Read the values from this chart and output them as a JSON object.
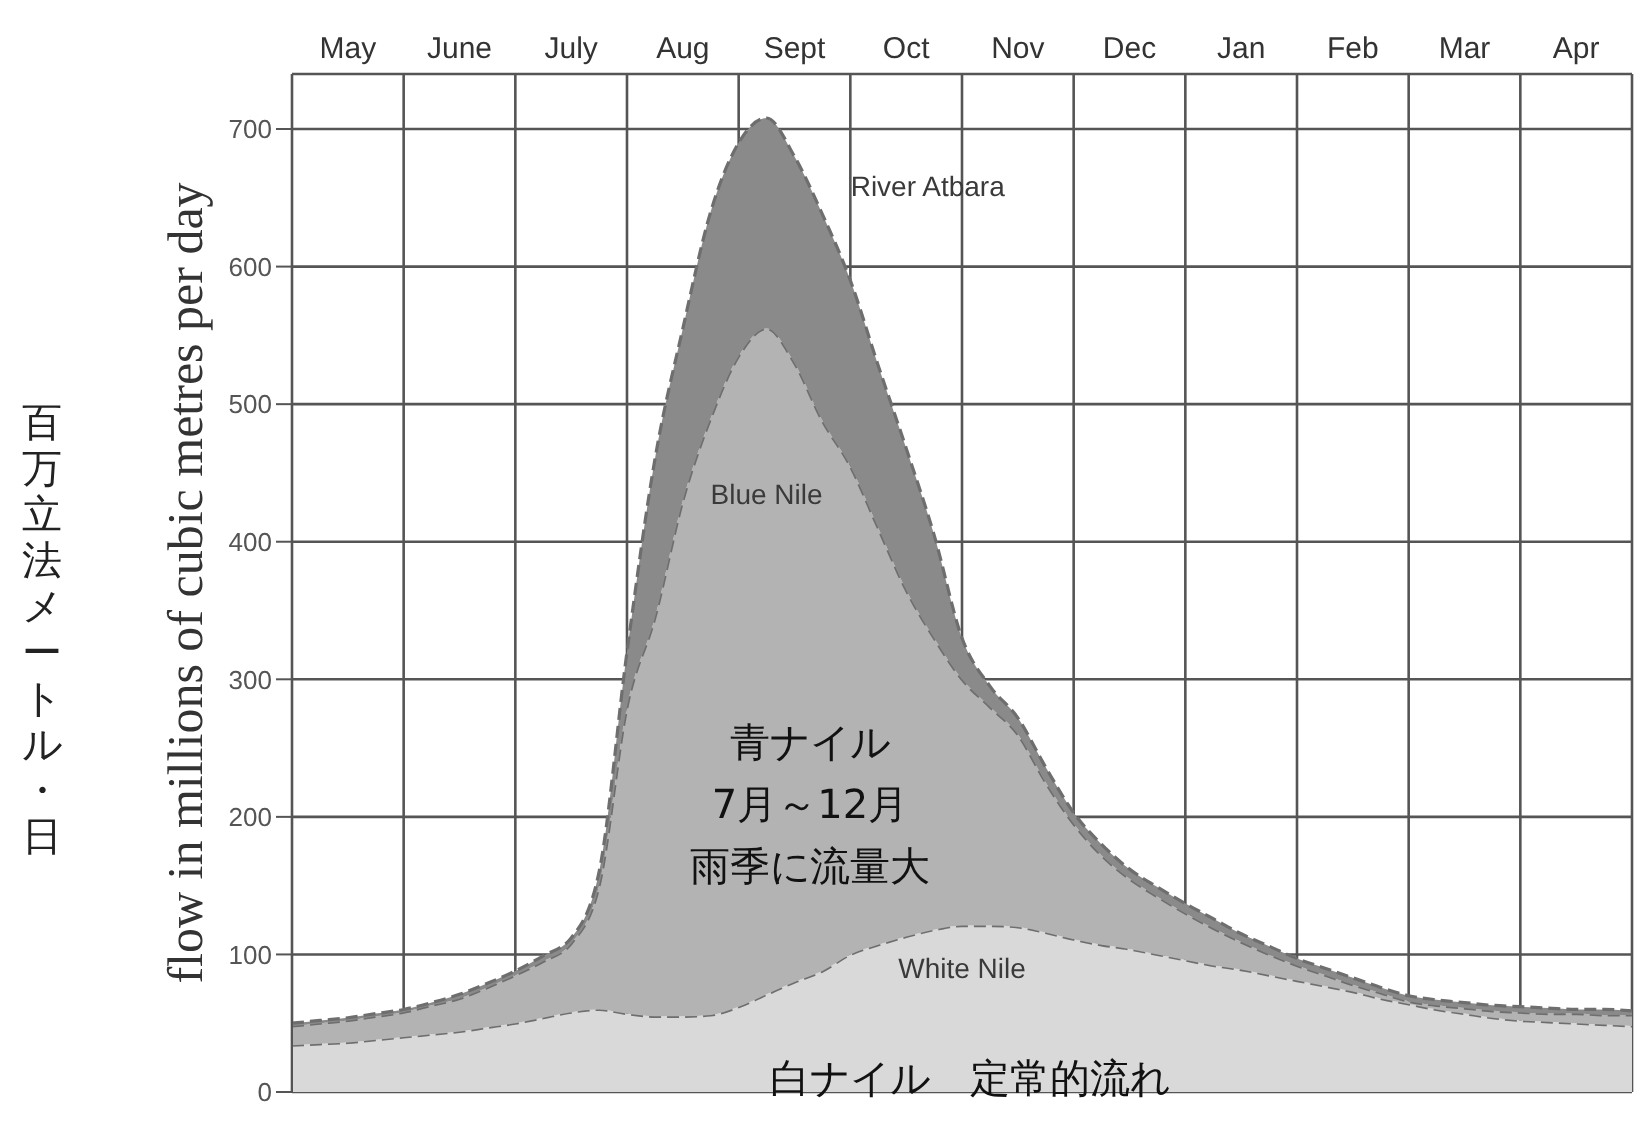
{
  "chart_data": {
    "type": "area",
    "stacked": true,
    "ylabel": "flow in millions of cubic metres per day",
    "annotations": [
      "百万立法メートル・日",
      "青ナイル",
      "7月～12月",
      "雨季に流量大",
      "白ナイル　定常的流れ"
    ],
    "categories": [
      null,
      null,
      "May",
      null,
      null,
      null,
      "June",
      null,
      null,
      null,
      "July",
      null,
      null,
      null,
      "Aug",
      null,
      null,
      null,
      "Sept",
      null,
      null,
      null,
      "Oct",
      null,
      null,
      null,
      "Nov",
      null,
      null,
      null,
      "Dec",
      null,
      null,
      null,
      "Jan",
      null,
      null,
      null,
      "Feb",
      null,
      null,
      null,
      "Mar",
      null,
      null,
      null,
      "Apr",
      null,
      null
    ],
    "series": [
      {
        "name": "White Nile",
        "color": "#d9d9d9",
        "values": [
          34,
          35,
          36,
          38,
          40,
          42,
          44,
          47,
          50,
          54,
          58,
          60,
          57,
          55,
          55,
          56,
          62,
          71,
          80,
          88,
          100,
          107,
          113,
          118,
          121,
          121,
          120,
          116,
          111,
          107,
          104,
          100,
          96,
          92,
          89,
          85,
          81,
          77,
          73,
          68,
          64,
          60,
          57,
          54,
          52,
          51,
          50,
          49,
          48
        ]
      },
      {
        "name": "Blue Nile",
        "color": "#b3b3b3",
        "values": [
          14,
          15,
          16,
          17,
          18,
          21,
          24,
          29,
          35,
          41,
          50,
          90,
          223,
          290,
          375,
          434,
          473,
          484,
          450,
          400,
          355,
          303,
          252,
          212,
          179,
          159,
          140,
          109,
          84,
          65,
          51,
          42,
          34,
          27,
          20,
          15,
          11,
          8,
          5,
          4,
          2,
          3,
          4,
          5,
          6,
          6,
          7,
          7,
          8
        ]
      },
      {
        "name": "River Atbara",
        "color": "#8a8a8a",
        "values": [
          2,
          2,
          2,
          2,
          2,
          2,
          3,
          3,
          3,
          4,
          4,
          10,
          40,
          115,
          125,
          150,
          155,
          153,
          150,
          150,
          135,
          118,
          103,
          75,
          30,
          15,
          12,
          11,
          8,
          8,
          7,
          7,
          7,
          7,
          6,
          6,
          5,
          5,
          5,
          4,
          4,
          4,
          4,
          4,
          4,
          4,
          3,
          4,
          3
        ]
      }
    ],
    "ylim": [
      0,
      740
    ],
    "yticks": [
      0,
      100,
      200,
      300,
      400,
      500,
      600,
      700
    ],
    "grid": true,
    "legend": false,
    "line_style": "dashed"
  }
}
